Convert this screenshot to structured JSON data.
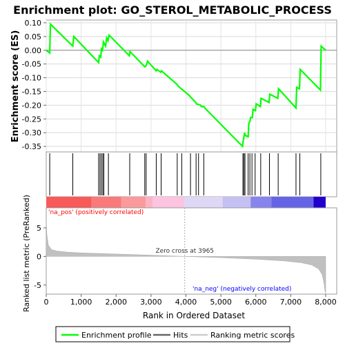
{
  "chart_data": {
    "type": "line",
    "title": "Enrichment plot: GO_STEROL_METABOLIC_PROCESS",
    "top_panel": {
      "ylabel": "Enrichment score (ES)",
      "ylim": [
        -0.37,
        0.11
      ],
      "yticks": [
        -0.35,
        -0.3,
        -0.25,
        -0.2,
        -0.15,
        -0.1,
        -0.05,
        0.0,
        0.05,
        0.1
      ],
      "ytick_labels": [
        "-0.35",
        "-0.30",
        "-0.25",
        "-0.20",
        "-0.15",
        "-0.10",
        "-0.05",
        "0.00",
        "0.05",
        "0.10"
      ],
      "grid": true,
      "series": [
        {
          "name": "Enrichment profile",
          "color": "#00ff00",
          "x": [
            0,
            100,
            120,
            760,
            790,
            1500,
            1520,
            1560,
            1580,
            1610,
            1640,
            1700,
            1730,
            1770,
            1800,
            2380,
            2400,
            2820,
            2840,
            2880,
            2900,
            3150,
            3170,
            3280,
            3300,
            3750,
            3770,
            4100,
            4130,
            4280,
            4300,
            4420,
            4440,
            4520,
            4540,
            5620,
            5640,
            5680,
            5700,
            5780,
            5800,
            5830,
            5850,
            5900,
            5920,
            5990,
            6010,
            6130,
            6150,
            6380,
            6400,
            6630,
            6650,
            7150,
            7170,
            7250,
            7270,
            7850,
            7870,
            8000
          ],
          "y": [
            0.0,
            -0.01,
            0.095,
            0.015,
            0.05,
            -0.045,
            -0.02,
            -0.025,
            0.005,
            0.0,
            0.03,
            0.015,
            0.045,
            0.035,
            0.055,
            -0.02,
            -0.005,
            -0.06,
            -0.06,
            -0.05,
            -0.04,
            -0.075,
            -0.07,
            -0.08,
            -0.075,
            -0.125,
            -0.13,
            -0.165,
            -0.17,
            -0.19,
            -0.195,
            -0.2,
            -0.205,
            -0.205,
            -0.21,
            -0.35,
            -0.33,
            -0.3,
            -0.31,
            -0.315,
            -0.265,
            -0.26,
            -0.245,
            -0.245,
            -0.215,
            -0.22,
            -0.195,
            -0.205,
            -0.175,
            -0.19,
            -0.16,
            -0.175,
            -0.14,
            -0.21,
            -0.135,
            -0.14,
            -0.07,
            -0.145,
            0.015,
            0.0
          ]
        }
      ]
    },
    "hits_panel": {
      "hit_positions": [
        100,
        760,
        1500,
        1540,
        1580,
        1620,
        1650,
        1780,
        2390,
        2820,
        2860,
        3150,
        3290,
        3750,
        3880,
        4130,
        4290,
        4360,
        4510,
        5630,
        5660,
        5690,
        5780,
        5830,
        5890,
        5980,
        6140,
        6390,
        6640,
        7150,
        7260,
        7860
      ]
    },
    "rank_panel": {
      "ylabel": "Ranked list metric (PreRanked)",
      "xlabel": "Rank in Ordered Dataset",
      "xlim": [
        0,
        8000
      ],
      "xticks": [
        0,
        1000,
        2000,
        3000,
        4000,
        5000,
        6000,
        7000,
        8000
      ],
      "xtick_labels": [
        "0",
        "1,000",
        "2,000",
        "3,000",
        "4,000",
        "5,000",
        "6,000",
        "7,000",
        "8,000"
      ],
      "ylim": [
        -6.6,
        8.5
      ],
      "yticks": [
        -5,
        0,
        5
      ],
      "ytick_labels": [
        "-5",
        "0",
        "5"
      ],
      "metric_curve": {
        "x": [
          0,
          20,
          60,
          150,
          300,
          600,
          1000,
          2000,
          3000,
          3965,
          5000,
          6000,
          6800,
          7300,
          7600,
          7800,
          7900,
          7950,
          7980,
          8000
        ],
        "y": [
          6.2,
          3.8,
          2.0,
          1.2,
          0.95,
          0.75,
          0.62,
          0.42,
          0.22,
          0.0,
          -0.22,
          -0.48,
          -0.78,
          -1.1,
          -1.5,
          -2.2,
          -3.2,
          -4.6,
          -6.0,
          -6.5
        ]
      },
      "zero_cross_x": 3965,
      "zero_cross_label": "Zero cross at 3965",
      "pos_label": "'na_pos' (positively correlated)",
      "neg_label": "'na_neg' (negatively correlated)",
      "pos_color": "#ff0000",
      "neg_color": "#0000ff"
    },
    "color_bar": {
      "segments": [
        {
          "end": 1300,
          "color": "#f85a5a"
        },
        {
          "end": 2150,
          "color": "#f97a7a"
        },
        {
          "end": 2850,
          "color": "#fb9a9a"
        },
        {
          "end": 3050,
          "color": "#fcb4c4"
        },
        {
          "end": 3950,
          "color": "#fcc4e0"
        },
        {
          "end": 5050,
          "color": "#ded8f6"
        },
        {
          "end": 5850,
          "color": "#c4c0f4"
        },
        {
          "end": 6450,
          "color": "#8884ee"
        },
        {
          "end": 7650,
          "color": "#6664e6"
        },
        {
          "end": 8000,
          "color": "#2200cc"
        }
      ]
    },
    "legend": [
      {
        "label": "Enrichment profile",
        "color": "#00ff00"
      },
      {
        "label": "Hits",
        "color": "#666666"
      },
      {
        "label": "Ranking metric scores",
        "color": "#cccccc"
      }
    ]
  }
}
